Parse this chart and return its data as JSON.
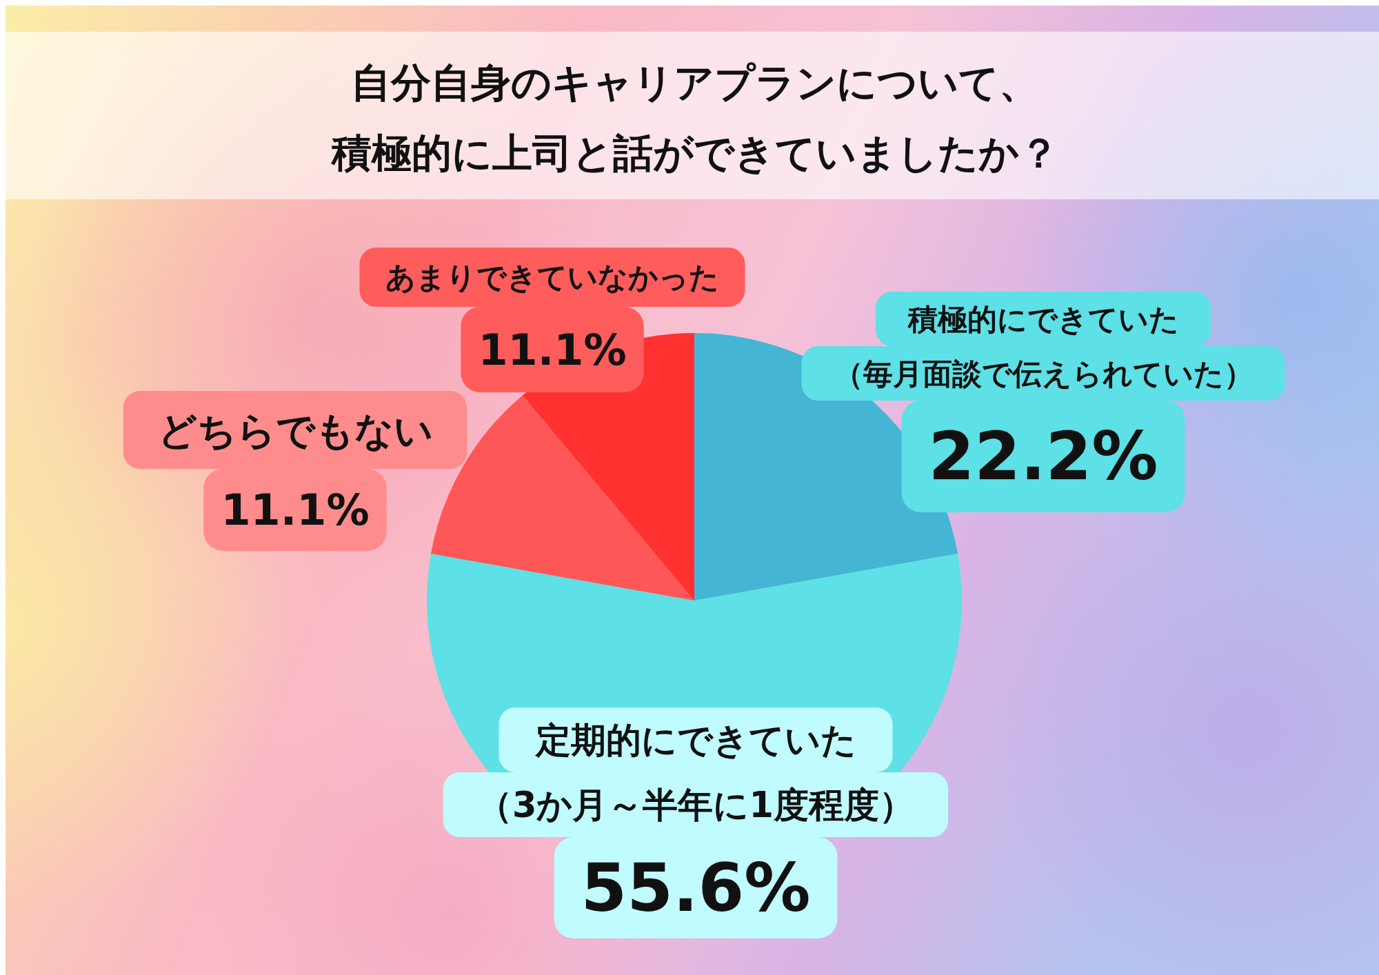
{
  "chart_data": {
    "type": "pie",
    "title": "自分自身のキャリアプランについて、積極的に上司と話ができていましたか？",
    "categories": [
      "積極的にできていた（毎月面談で伝えられていた）",
      "定期的にできていた（3か月～半年に1度程度）",
      "どちらでもない",
      "あまりできていなかった"
    ],
    "values": [
      22.2,
      55.6,
      11.1,
      11.1
    ],
    "colors": [
      "#44b6d4",
      "#5de0e6",
      "#ff5757",
      "#ff3131"
    ],
    "value_labels": [
      "22.2%",
      "55.6%",
      "11.1%",
      "11.1%"
    ]
  }
}
